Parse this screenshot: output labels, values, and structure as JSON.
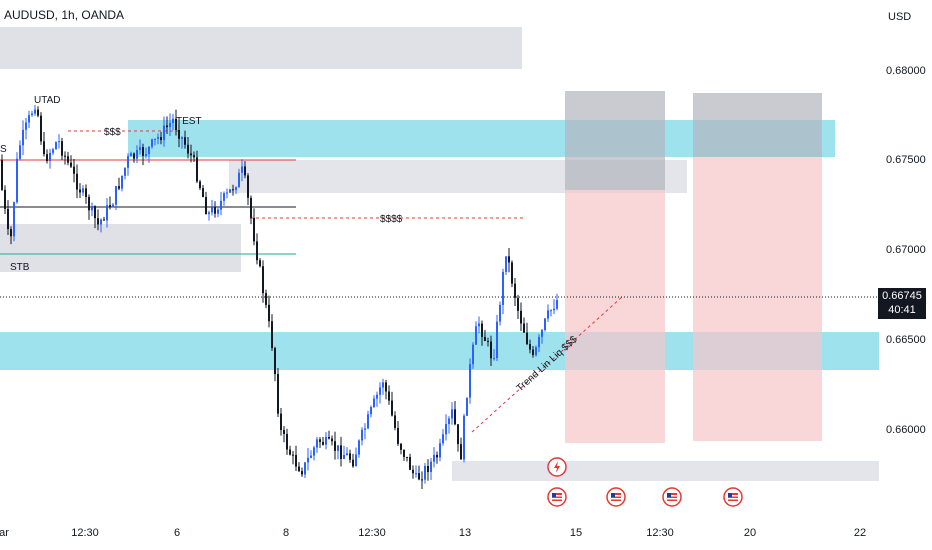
{
  "chart_data": {
    "type": "candlestick",
    "title": "AUDUSD, 1h, OANDA",
    "currency": "USD",
    "y_ticks": [
      "0.68000",
      "0.67500",
      "0.67000",
      "0.66500",
      "0.66000"
    ],
    "x_ticks": [
      "ar",
      "12:30",
      "6",
      "8",
      "12:30",
      "13",
      "15",
      "12:30",
      "20",
      "22"
    ],
    "last_price": "0.66745",
    "countdown": "40:41",
    "annotations": [
      "UTAD",
      "$$$",
      "TEST",
      "$$$$",
      "STB",
      "S",
      "Trend Lin Liq $$$"
    ],
    "colors": {
      "up": "#2962ff",
      "down": "#131722",
      "zone_cyan": "#7dd8e8",
      "zone_gray": "#d1d4dc",
      "stop_zone": "#f7c6c9",
      "target_zone": "#b2b5be",
      "resistance_red": "#e53935",
      "support_teal": "#26a69a"
    },
    "icons": [
      "lightning-icon",
      "us-flag-icon",
      "us-flag-icon",
      "us-flag-icon",
      "us-flag-icon"
    ]
  }
}
